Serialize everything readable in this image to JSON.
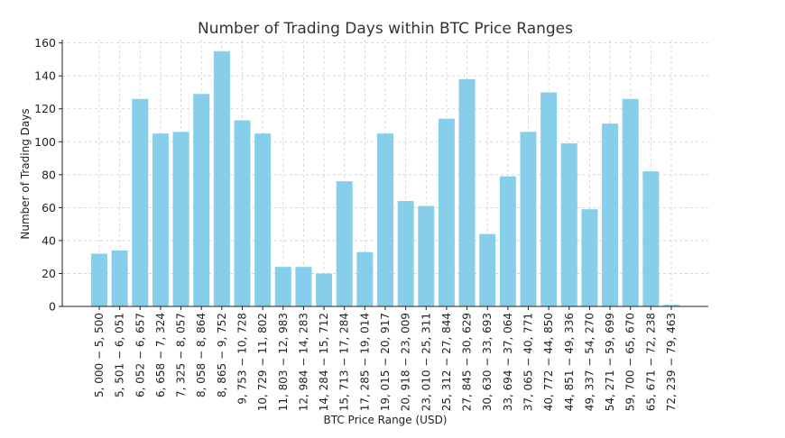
{
  "chart_data": {
    "type": "bar",
    "title": "Number of Trading Days within BTC Price Ranges",
    "xlabel": "BTC Price Range (USD)",
    "ylabel": "Number of Trading Days",
    "ylim": [
      0,
      162
    ],
    "yticks": [
      0,
      20,
      40,
      60,
      80,
      100,
      120,
      140,
      160
    ],
    "grid": true,
    "bar_color": "#87CEEB",
    "categories": [
      "5, 000 − 5, 500",
      "5, 501 − 6, 051",
      "6, 052 − 6, 657",
      "6, 658 − 7, 324",
      "7, 325 − 8, 057",
      "8, 058 − 8, 864",
      "8, 865 − 9, 752",
      "9, 753 − 10, 728",
      "10, 729 − 11, 802",
      "11, 803 − 12, 983",
      "12, 984 − 14, 283",
      "14, 284 − 15, 712",
      "15, 713 − 17, 284",
      "17, 285 − 19, 014",
      "19, 015 − 20, 917",
      "20, 918 − 23, 009",
      "23, 010 − 25, 311",
      "25, 312 − 27, 844",
      "27, 845 − 30, 629",
      "30, 630 − 33, 693",
      "33, 694 − 37, 064",
      "37, 065 − 40, 771",
      "40, 772 − 44, 850",
      "44, 851 − 49, 336",
      "49, 337 − 54, 270",
      "54, 271 − 59, 699",
      "59, 700 − 65, 670",
      "65, 671 − 72, 238",
      "72, 239 − 79, 463"
    ],
    "values": [
      32,
      34,
      126,
      105,
      106,
      129,
      155,
      113,
      105,
      24,
      24,
      20,
      76,
      33,
      105,
      64,
      61,
      114,
      138,
      44,
      79,
      106,
      130,
      99,
      59,
      111,
      126,
      82,
      1
    ]
  }
}
